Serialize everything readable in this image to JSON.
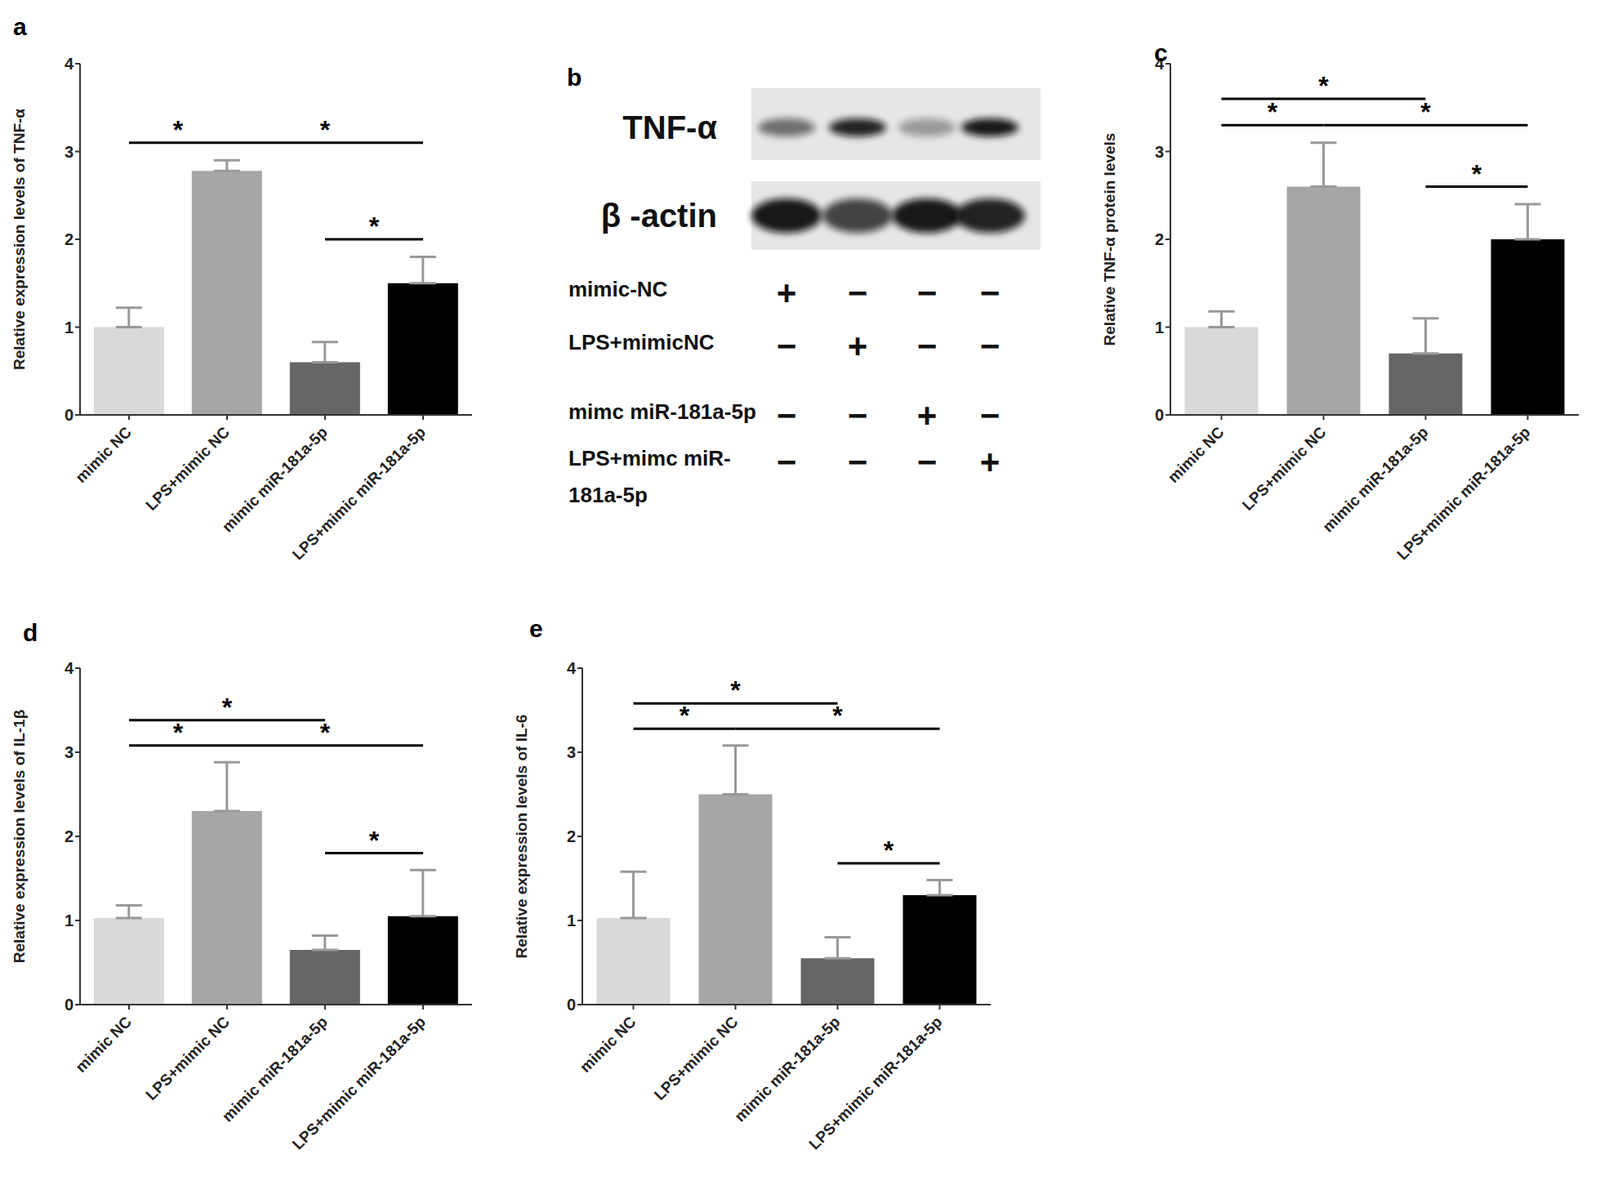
{
  "chart_data": [
    {
      "panel": "a",
      "type": "bar",
      "y_label": "Relative expression levels of TNF-α",
      "categories": [
        "mimic NC",
        "LPS+mimic NC",
        "mimic miR-181a-5p",
        "LPS+mimic miR-181a-5p"
      ],
      "values": [
        1.0,
        2.78,
        0.6,
        1.5
      ],
      "errors": [
        0.22,
        0.12,
        0.23,
        0.3
      ],
      "colors": [
        "#d9d9d9",
        "#a6a6a6",
        "#666666",
        "#000000"
      ],
      "ylim": [
        0,
        4
      ],
      "yticks": [
        0,
        1,
        2,
        3,
        4
      ],
      "significance": [
        {
          "from": 0,
          "to": 1,
          "label": "*"
        },
        {
          "from": 1,
          "to": 3,
          "label": "*"
        },
        {
          "from": 2,
          "to": 3,
          "label": "*"
        }
      ]
    },
    {
      "panel": "c",
      "type": "bar",
      "y_label": "Relative TNF-α  protein levels",
      "categories": [
        "mimic NC",
        "LPS+mimic NC",
        "mimic miR-181a-5p",
        "LPS+mimic miR-181a-5p"
      ],
      "values": [
        1.0,
        2.6,
        0.7,
        2.0
      ],
      "errors": [
        0.18,
        0.5,
        0.4,
        0.4
      ],
      "colors": [
        "#d9d9d9",
        "#a6a6a6",
        "#666666",
        "#000000"
      ],
      "ylim": [
        0,
        4
      ],
      "yticks": [
        0,
        1,
        2,
        3,
        4
      ],
      "significance": [
        {
          "from": 0,
          "to": 1,
          "label": "*"
        },
        {
          "from": 0,
          "to": 2,
          "label": "*"
        },
        {
          "from": 1,
          "to": 3,
          "label": "*"
        },
        {
          "from": 2,
          "to": 3,
          "label": "*"
        }
      ]
    },
    {
      "panel": "d",
      "type": "bar",
      "y_label": "Relative expression levels of IL-1β",
      "categories": [
        "mimic NC",
        "LPS+mimic NC",
        "mimic miR-181a-5p",
        "LPS+mimic miR-181a-5p"
      ],
      "values": [
        1.03,
        2.3,
        0.65,
        1.05
      ],
      "errors": [
        0.15,
        0.58,
        0.17,
        0.55
      ],
      "colors": [
        "#d9d9d9",
        "#a6a6a6",
        "#666666",
        "#000000"
      ],
      "ylim": [
        0,
        4
      ],
      "yticks": [
        0,
        1,
        2,
        3,
        4
      ],
      "significance": [
        {
          "from": 0,
          "to": 2,
          "label": "*"
        },
        {
          "from": 0,
          "to": 1,
          "label": "*"
        },
        {
          "from": 1,
          "to": 3,
          "label": "*"
        },
        {
          "from": 2,
          "to": 3,
          "label": "*"
        }
      ]
    },
    {
      "panel": "e",
      "type": "bar",
      "y_label": "Relative expression levels of IL-6",
      "categories": [
        "mimic NC",
        "LPS+mimic NC",
        "mimic miR-181a-5p",
        "LPS+mimic miR-181a-5p"
      ],
      "values": [
        1.03,
        2.5,
        0.55,
        1.3
      ],
      "errors": [
        0.55,
        0.58,
        0.25,
        0.18
      ],
      "colors": [
        "#d9d9d9",
        "#a6a6a6",
        "#666666",
        "#000000"
      ],
      "ylim": [
        0,
        4
      ],
      "yticks": [
        0,
        1,
        2,
        3,
        4
      ],
      "significance": [
        {
          "from": 0,
          "to": 2,
          "label": "*"
        },
        {
          "from": 0,
          "to": 1,
          "label": "*"
        },
        {
          "from": 1,
          "to": 3,
          "label": "*"
        },
        {
          "from": 2,
          "to": 3,
          "label": "*"
        }
      ]
    }
  ],
  "blot": {
    "panel": "b",
    "bands": [
      {
        "label": "TNF-α",
        "intensity": [
          0.55,
          0.9,
          0.35,
          0.95
        ]
      },
      {
        "label": "β -actin",
        "intensity": [
          0.95,
          0.75,
          0.95,
          0.9
        ]
      }
    ],
    "conditions": [
      {
        "label": [
          "mimic-NC"
        ],
        "signs": [
          "+",
          "−",
          "−",
          "−"
        ]
      },
      {
        "label": [
          "LPS+mimicNC"
        ],
        "signs": [
          "−",
          "+",
          "−",
          "−"
        ]
      },
      {
        "label": [
          "mimc miR-181a-5p"
        ],
        "signs": [
          "−",
          "−",
          "+",
          "−"
        ]
      },
      {
        "label": [
          "LPS+mimc miR-",
          "181a-5p"
        ],
        "signs": [
          "−",
          "−",
          "−",
          "+"
        ]
      }
    ]
  }
}
